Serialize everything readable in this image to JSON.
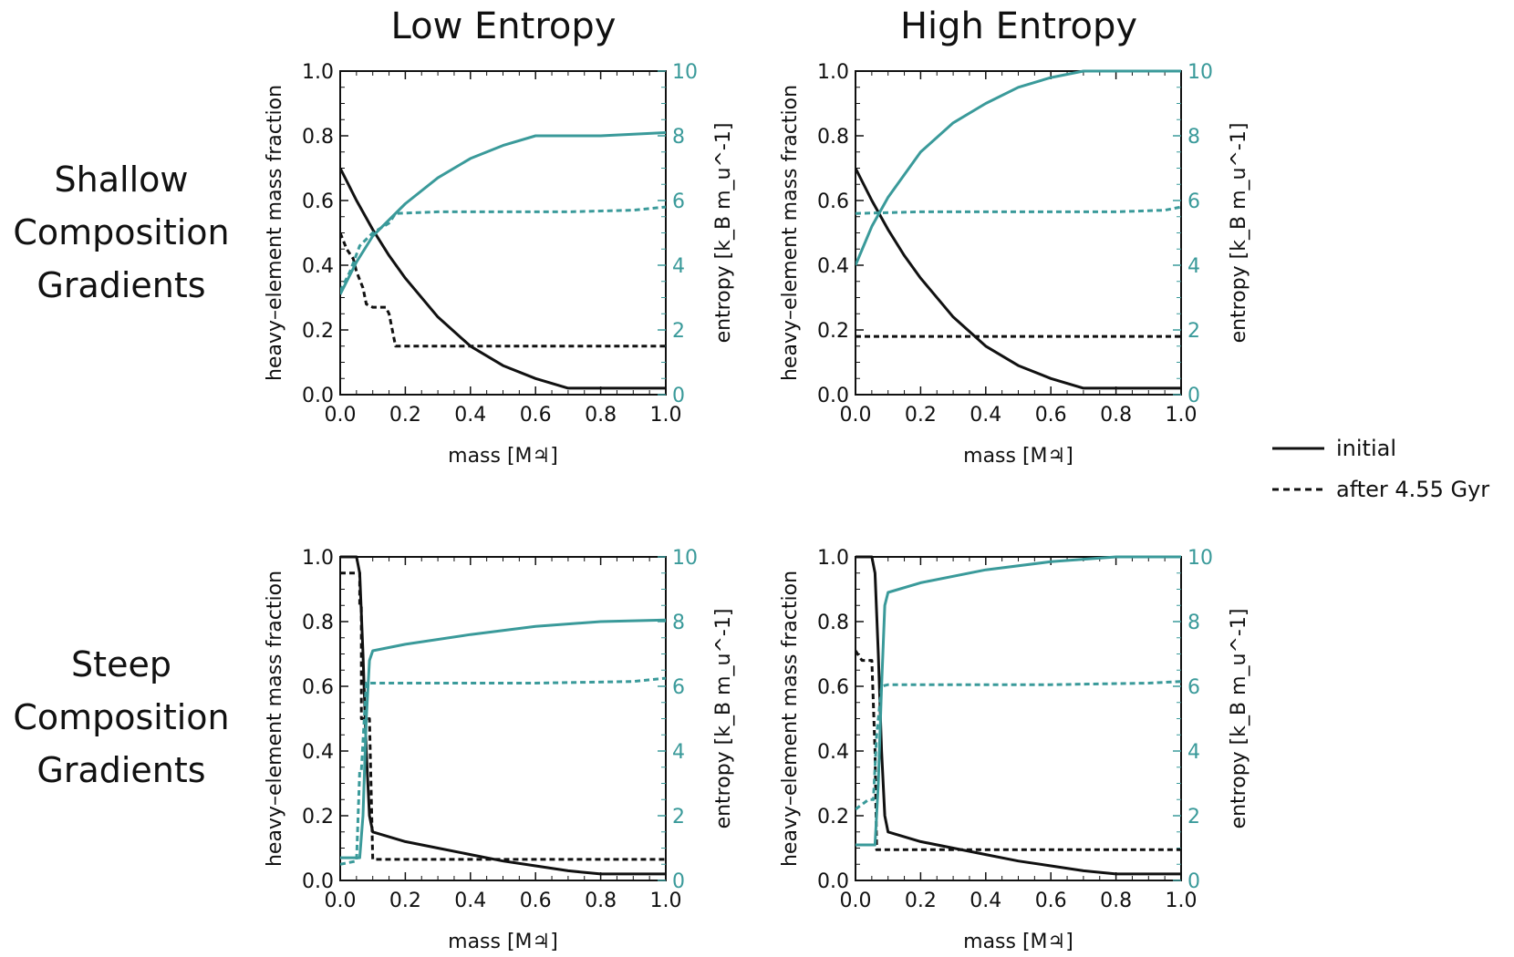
{
  "figure": {
    "col_titles": [
      "Low Entropy",
      "High Entropy"
    ],
    "row_titles": [
      [
        "Shallow",
        "Composition",
        "Gradients"
      ],
      [
        "Steep",
        "Composition",
        "Gradients"
      ]
    ],
    "colors": {
      "composition": "#111111",
      "entropy": "#3a9a9a"
    }
  },
  "legend": {
    "initial_label": "initial",
    "after_label": "after 4.55 Gyr"
  },
  "chart_data": [
    {
      "type": "line",
      "title": "Low Entropy / Shallow Composition Gradients",
      "xlabel": "mass [M♃]",
      "ylabel_left": "heavy–element mass fraction",
      "ylabel_right": "entropy [k_B m_u^-1]",
      "xlim": [
        0,
        1
      ],
      "ylim_left": [
        0,
        1
      ],
      "ylim_right": [
        0,
        10
      ],
      "xticks": [
        "0.0",
        "0.2",
        "0.4",
        "0.6",
        "0.8",
        "1.0"
      ],
      "yticks_left": [
        "0.0",
        "0.2",
        "0.4",
        "0.6",
        "0.8",
        "1.0"
      ],
      "yticks_right": [
        "0",
        "2",
        "4",
        "6",
        "8",
        "10"
      ],
      "series": [
        {
          "name": "composition initial",
          "axis": "left",
          "style": "solid",
          "x": [
            0.0,
            0.05,
            0.1,
            0.15,
            0.2,
            0.3,
            0.4,
            0.5,
            0.6,
            0.7,
            1.0
          ],
          "y": [
            0.7,
            0.6,
            0.51,
            0.43,
            0.36,
            0.24,
            0.15,
            0.09,
            0.05,
            0.02,
            0.02
          ]
        },
        {
          "name": "composition after 4.55 Gyr",
          "axis": "left",
          "style": "dashed",
          "x": [
            0.0,
            0.02,
            0.04,
            0.05,
            0.07,
            0.08,
            0.1,
            0.14,
            0.15,
            0.17,
            0.18,
            1.0
          ],
          "y": [
            0.5,
            0.45,
            0.42,
            0.38,
            0.33,
            0.28,
            0.27,
            0.27,
            0.25,
            0.15,
            0.15,
            0.15
          ]
        },
        {
          "name": "entropy initial",
          "axis": "right",
          "style": "solid",
          "x": [
            0.0,
            0.05,
            0.1,
            0.2,
            0.3,
            0.4,
            0.5,
            0.6,
            0.7,
            0.8,
            0.9,
            1.0
          ],
          "y": [
            3.1,
            4.1,
            4.9,
            5.9,
            6.7,
            7.3,
            7.7,
            8.0,
            8.0,
            8.0,
            8.05,
            8.1
          ]
        },
        {
          "name": "entropy after 4.55 Gyr",
          "axis": "right",
          "style": "dashed",
          "x": [
            0.0,
            0.03,
            0.06,
            0.1,
            0.15,
            0.17,
            0.3,
            0.5,
            0.7,
            0.9,
            1.0
          ],
          "y": [
            3.2,
            3.8,
            4.6,
            5.0,
            5.3,
            5.6,
            5.65,
            5.65,
            5.65,
            5.7,
            5.8
          ]
        }
      ]
    },
    {
      "type": "line",
      "title": "High Entropy / Shallow Composition Gradients",
      "xlabel": "mass [M♃]",
      "ylabel_left": "heavy–element mass fraction",
      "ylabel_right": "entropy [k_B m_u^-1]",
      "xlim": [
        0,
        1
      ],
      "ylim_left": [
        0,
        1
      ],
      "ylim_right": [
        0,
        10
      ],
      "xticks": [
        "0.0",
        "0.2",
        "0.4",
        "0.6",
        "0.8",
        "1.0"
      ],
      "yticks_left": [
        "0.0",
        "0.2",
        "0.4",
        "0.6",
        "0.8",
        "1.0"
      ],
      "yticks_right": [
        "0",
        "2",
        "4",
        "6",
        "8",
        "10"
      ],
      "series": [
        {
          "name": "composition initial",
          "axis": "left",
          "style": "solid",
          "x": [
            0.0,
            0.05,
            0.1,
            0.15,
            0.2,
            0.3,
            0.4,
            0.5,
            0.6,
            0.7,
            1.0
          ],
          "y": [
            0.7,
            0.6,
            0.51,
            0.43,
            0.36,
            0.24,
            0.15,
            0.09,
            0.05,
            0.02,
            0.02
          ]
        },
        {
          "name": "composition after 4.55 Gyr",
          "axis": "left",
          "style": "dashed",
          "x": [
            0.0,
            1.0
          ],
          "y": [
            0.18,
            0.18
          ]
        },
        {
          "name": "entropy initial",
          "axis": "right",
          "style": "solid",
          "x": [
            0.0,
            0.05,
            0.1,
            0.2,
            0.3,
            0.4,
            0.5,
            0.6,
            0.7,
            0.8,
            0.9,
            1.0
          ],
          "y": [
            4.0,
            5.2,
            6.1,
            7.5,
            8.4,
            9.0,
            9.5,
            9.8,
            10.0,
            10.0,
            10.0,
            10.0
          ]
        },
        {
          "name": "entropy after 4.55 Gyr",
          "axis": "right",
          "style": "dashed",
          "x": [
            0.0,
            0.2,
            0.5,
            0.8,
            0.95,
            1.0
          ],
          "y": [
            5.6,
            5.65,
            5.65,
            5.65,
            5.7,
            5.8
          ]
        }
      ]
    },
    {
      "type": "line",
      "title": "Low Entropy / Steep Composition Gradients",
      "xlabel": "mass [M♃]",
      "ylabel_left": "heavy–element mass fraction",
      "ylabel_right": "entropy [k_B m_u^-1]",
      "xlim": [
        0,
        1
      ],
      "ylim_left": [
        0,
        1
      ],
      "ylim_right": [
        0,
        10
      ],
      "xticks": [
        "0.0",
        "0.2",
        "0.4",
        "0.6",
        "0.8",
        "1.0"
      ],
      "yticks_left": [
        "0.0",
        "0.2",
        "0.4",
        "0.6",
        "0.8",
        "1.0"
      ],
      "yticks_right": [
        "0",
        "2",
        "4",
        "6",
        "8",
        "10"
      ],
      "series": [
        {
          "name": "composition initial",
          "axis": "left",
          "style": "solid",
          "x": [
            0.0,
            0.05,
            0.06,
            0.07,
            0.08,
            0.09,
            0.1,
            0.2,
            0.3,
            0.4,
            0.5,
            0.6,
            0.7,
            0.8,
            1.0
          ],
          "y": [
            1.0,
            1.0,
            0.95,
            0.7,
            0.4,
            0.2,
            0.15,
            0.12,
            0.1,
            0.08,
            0.06,
            0.045,
            0.03,
            0.02,
            0.02
          ]
        },
        {
          "name": "composition after 4.55 Gyr",
          "axis": "left",
          "style": "dashed",
          "x": [
            0.0,
            0.06,
            0.06,
            0.065,
            0.065,
            0.09,
            0.1,
            1.0
          ],
          "y": [
            0.95,
            0.95,
            0.85,
            0.85,
            0.5,
            0.5,
            0.065,
            0.065
          ]
        },
        {
          "name": "entropy initial",
          "axis": "right",
          "style": "solid",
          "x": [
            0.0,
            0.06,
            0.07,
            0.08,
            0.09,
            0.1,
            0.2,
            0.4,
            0.6,
            0.8,
            1.0
          ],
          "y": [
            0.7,
            0.7,
            2.0,
            5.0,
            6.8,
            7.1,
            7.3,
            7.6,
            7.85,
            8.0,
            8.05
          ]
        },
        {
          "name": "entropy after 4.55 Gyr",
          "axis": "right",
          "style": "dashed",
          "x": [
            0.0,
            0.05,
            0.06,
            0.065,
            0.08,
            0.1,
            0.3,
            0.6,
            0.9,
            1.0
          ],
          "y": [
            0.5,
            0.6,
            3.4,
            3.4,
            6.1,
            6.1,
            6.1,
            6.1,
            6.15,
            6.25
          ]
        }
      ]
    },
    {
      "type": "line",
      "title": "High Entropy / Steep Composition Gradients",
      "xlabel": "mass [M♃]",
      "ylabel_left": "heavy–element mass fraction",
      "ylabel_right": "entropy [k_B m_u^-1]",
      "xlim": [
        0,
        1
      ],
      "ylim_left": [
        0,
        1
      ],
      "ylim_right": [
        0,
        10
      ],
      "xticks": [
        "0.0",
        "0.2",
        "0.4",
        "0.6",
        "0.8",
        "1.0"
      ],
      "yticks_left": [
        "0.0",
        "0.2",
        "0.4",
        "0.6",
        "0.8",
        "1.0"
      ],
      "yticks_right": [
        "0",
        "2",
        "4",
        "6",
        "8",
        "10"
      ],
      "series": [
        {
          "name": "composition initial",
          "axis": "left",
          "style": "solid",
          "x": [
            0.0,
            0.05,
            0.06,
            0.07,
            0.08,
            0.09,
            0.1,
            0.2,
            0.3,
            0.4,
            0.5,
            0.6,
            0.7,
            0.8,
            1.0
          ],
          "y": [
            1.0,
            1.0,
            0.95,
            0.7,
            0.4,
            0.2,
            0.15,
            0.12,
            0.1,
            0.08,
            0.06,
            0.045,
            0.03,
            0.02,
            0.02
          ]
        },
        {
          "name": "composition after 4.55 Gyr",
          "axis": "left",
          "style": "dashed",
          "x": [
            0.0,
            0.02,
            0.05,
            0.06,
            0.065,
            1.0
          ],
          "y": [
            0.71,
            0.68,
            0.68,
            0.4,
            0.095,
            0.095
          ]
        },
        {
          "name": "entropy initial",
          "axis": "right",
          "style": "solid",
          "x": [
            0.0,
            0.06,
            0.07,
            0.08,
            0.09,
            0.1,
            0.2,
            0.4,
            0.6,
            0.8,
            1.0
          ],
          "y": [
            1.1,
            1.1,
            3.0,
            6.0,
            8.5,
            8.9,
            9.2,
            9.6,
            9.85,
            10.0,
            10.0
          ]
        },
        {
          "name": "entropy after 4.55 Gyr",
          "axis": "right",
          "style": "dashed",
          "x": [
            0.0,
            0.04,
            0.055,
            0.065,
            0.08,
            0.1,
            0.3,
            0.6,
            0.9,
            1.0
          ],
          "y": [
            2.2,
            2.5,
            2.5,
            4.5,
            6.0,
            6.05,
            6.05,
            6.05,
            6.1,
            6.15
          ]
        }
      ]
    }
  ]
}
